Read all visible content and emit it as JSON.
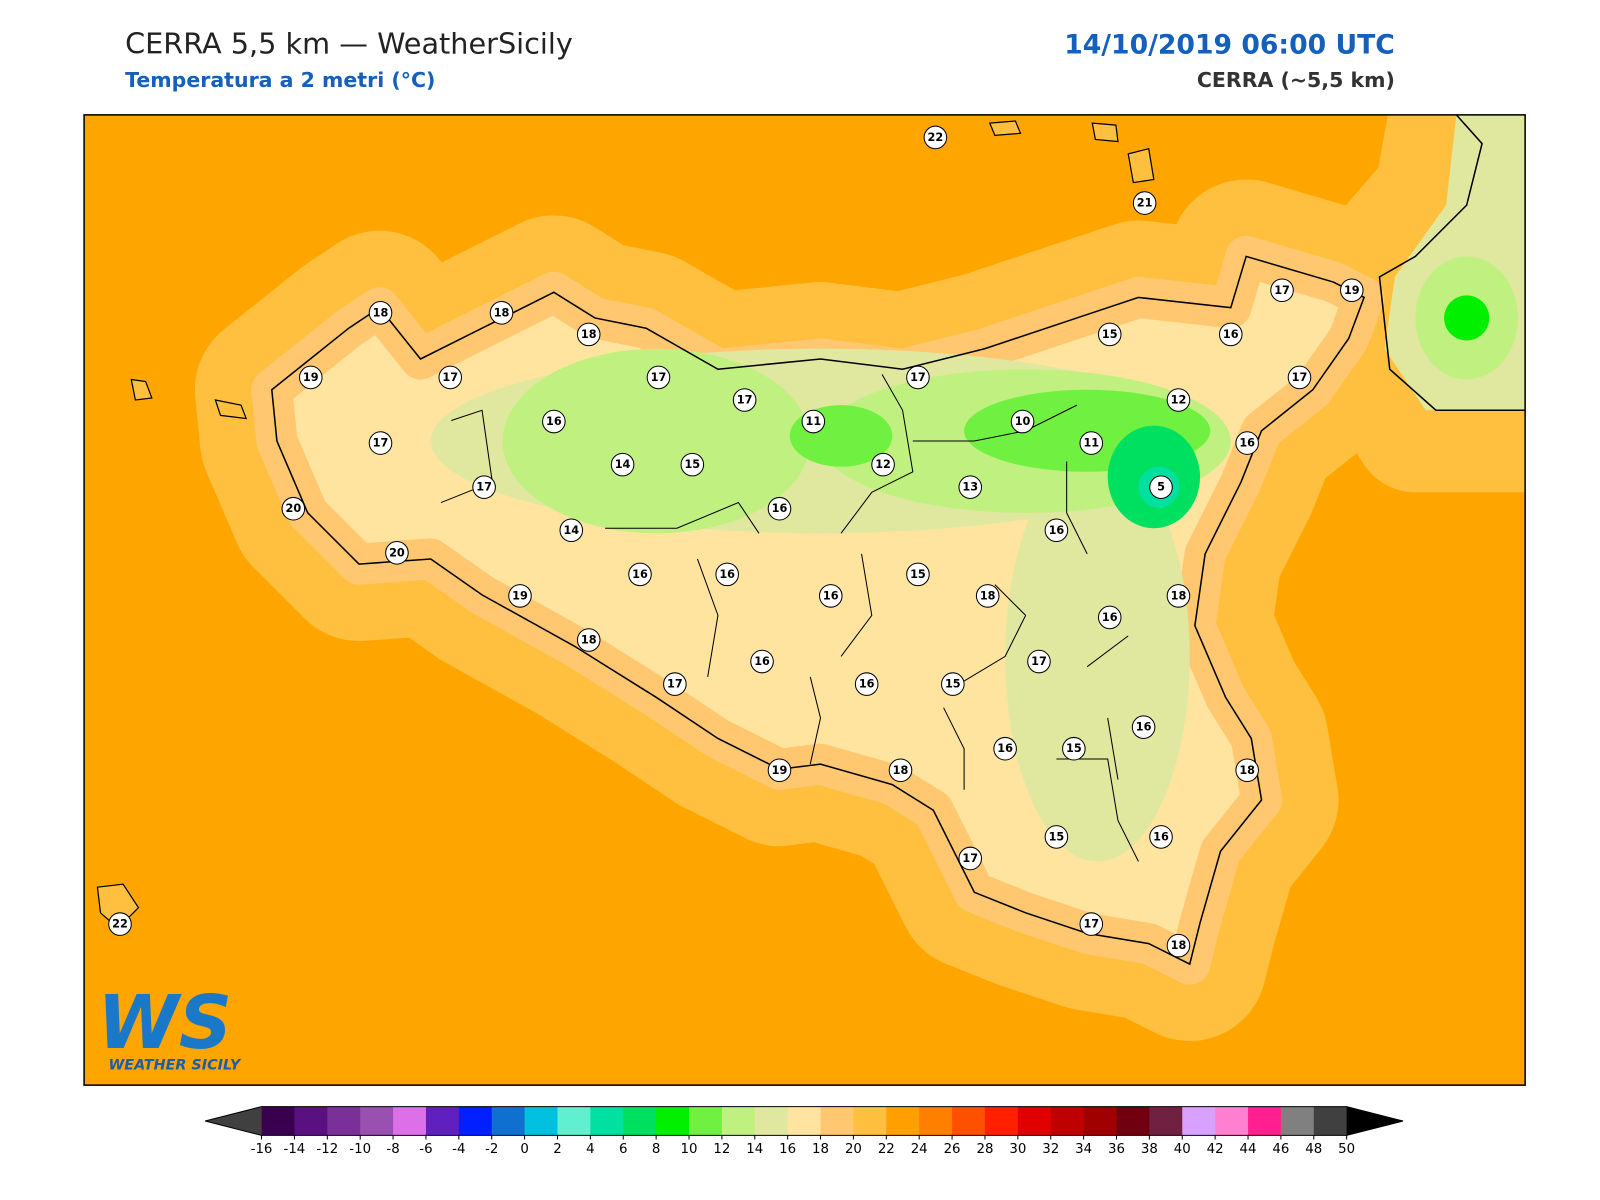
{
  "header": {
    "title": "CERRA 5,5 km — WeatherSicily",
    "subtitle": "Temperatura a 2 metri (°C)",
    "datetime": "14/10/2019 06:00 UTC",
    "model": "CERRA (~5,5 km)"
  },
  "map": {
    "stations": [
      22,
      21,
      18,
      18,
      18,
      19,
      17,
      17,
      17,
      17,
      15,
      16,
      17,
      19,
      17,
      12,
      10,
      11,
      16,
      11,
      12,
      16,
      17,
      14,
      15,
      17,
      13,
      5,
      20,
      16,
      16,
      14,
      20,
      16,
      16,
      15,
      16,
      18,
      18,
      19,
      16,
      18,
      17,
      16,
      17,
      16,
      15,
      16,
      16,
      15,
      18,
      19,
      18,
      15,
      16,
      17,
      17,
      18,
      22
    ]
  },
  "colorbar": {
    "ticks": [
      -16,
      -14,
      -12,
      -10,
      -8,
      -6,
      -4,
      -2,
      0,
      2,
      4,
      6,
      8,
      10,
      12,
      14,
      16,
      18,
      20,
      22,
      24,
      26,
      28,
      30,
      32,
      34,
      36,
      38,
      40,
      42,
      44,
      46,
      48,
      50
    ],
    "colors": [
      "#3a0050",
      "#5a1080",
      "#7a3098",
      "#9a50b0",
      "#dd70e8",
      "#6020c0",
      "#0020ff",
      "#1070d0",
      "#00c0e0",
      "#60f0d0",
      "#00e0a0",
      "#00e060",
      "#00f000",
      "#70f040",
      "#c0f080",
      "#e0e8a0",
      "#ffe4a0",
      "#ffc870",
      "#ffc040",
      "#ffa000",
      "#ff8000",
      "#ff5000",
      "#ff2000",
      "#e00000",
      "#c00000",
      "#a00000",
      "#700010",
      "#702040",
      "#d8a0ff",
      "#ff80d0",
      "#ff2090",
      "#808080",
      "#404040"
    ],
    "under_color": "#404040",
    "over_color": "#000000"
  },
  "logo": {
    "mark": "WS",
    "name": "WEATHER SICILY"
  }
}
